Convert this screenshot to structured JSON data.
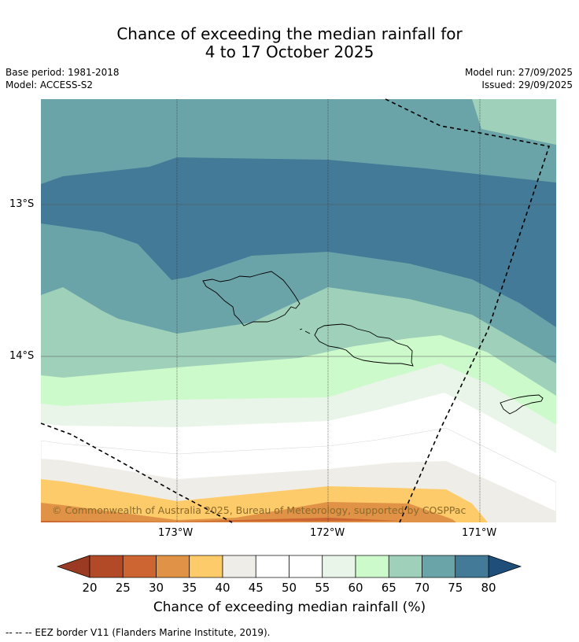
{
  "title": {
    "line1": "Chance of exceeding the median rainfall for",
    "line2": "4 to 17 October 2025"
  },
  "meta": {
    "base_period": "Base period: 1981-2018",
    "model": "Model: ACCESS-S2",
    "model_run": "Model run: 27/09/2025",
    "issued": "Issued: 29/09/2025"
  },
  "map": {
    "lon_labels": [
      "173°W",
      "172°W",
      "171°W"
    ],
    "lat_labels": [
      "13°S",
      "14°S"
    ],
    "copyright": "© Commonwealth of Australia 2025, Bureau of Meteorology, supported by COSPPac"
  },
  "legend": {
    "ticks": [
      "20",
      "25",
      "30",
      "35",
      "40",
      "45",
      "50",
      "55",
      "60",
      "65",
      "70",
      "75",
      "80"
    ],
    "colors": [
      "#b24a27",
      "#cc6532",
      "#e09347",
      "#fecb6a",
      "#efede7",
      "#ffffff",
      "#ffffff",
      "#e9f5e9",
      "#cdfacb",
      "#9fd0b9",
      "#6ba4a8",
      "#427a98"
    ],
    "low_color": "#9a3a22",
    "high_color": "#1e4e79",
    "label": "Chance of exceeding median rainfall (%)"
  },
  "footer": "--  --  -- EEZ border V11 (Flanders Marine Institute, 2019)."
}
